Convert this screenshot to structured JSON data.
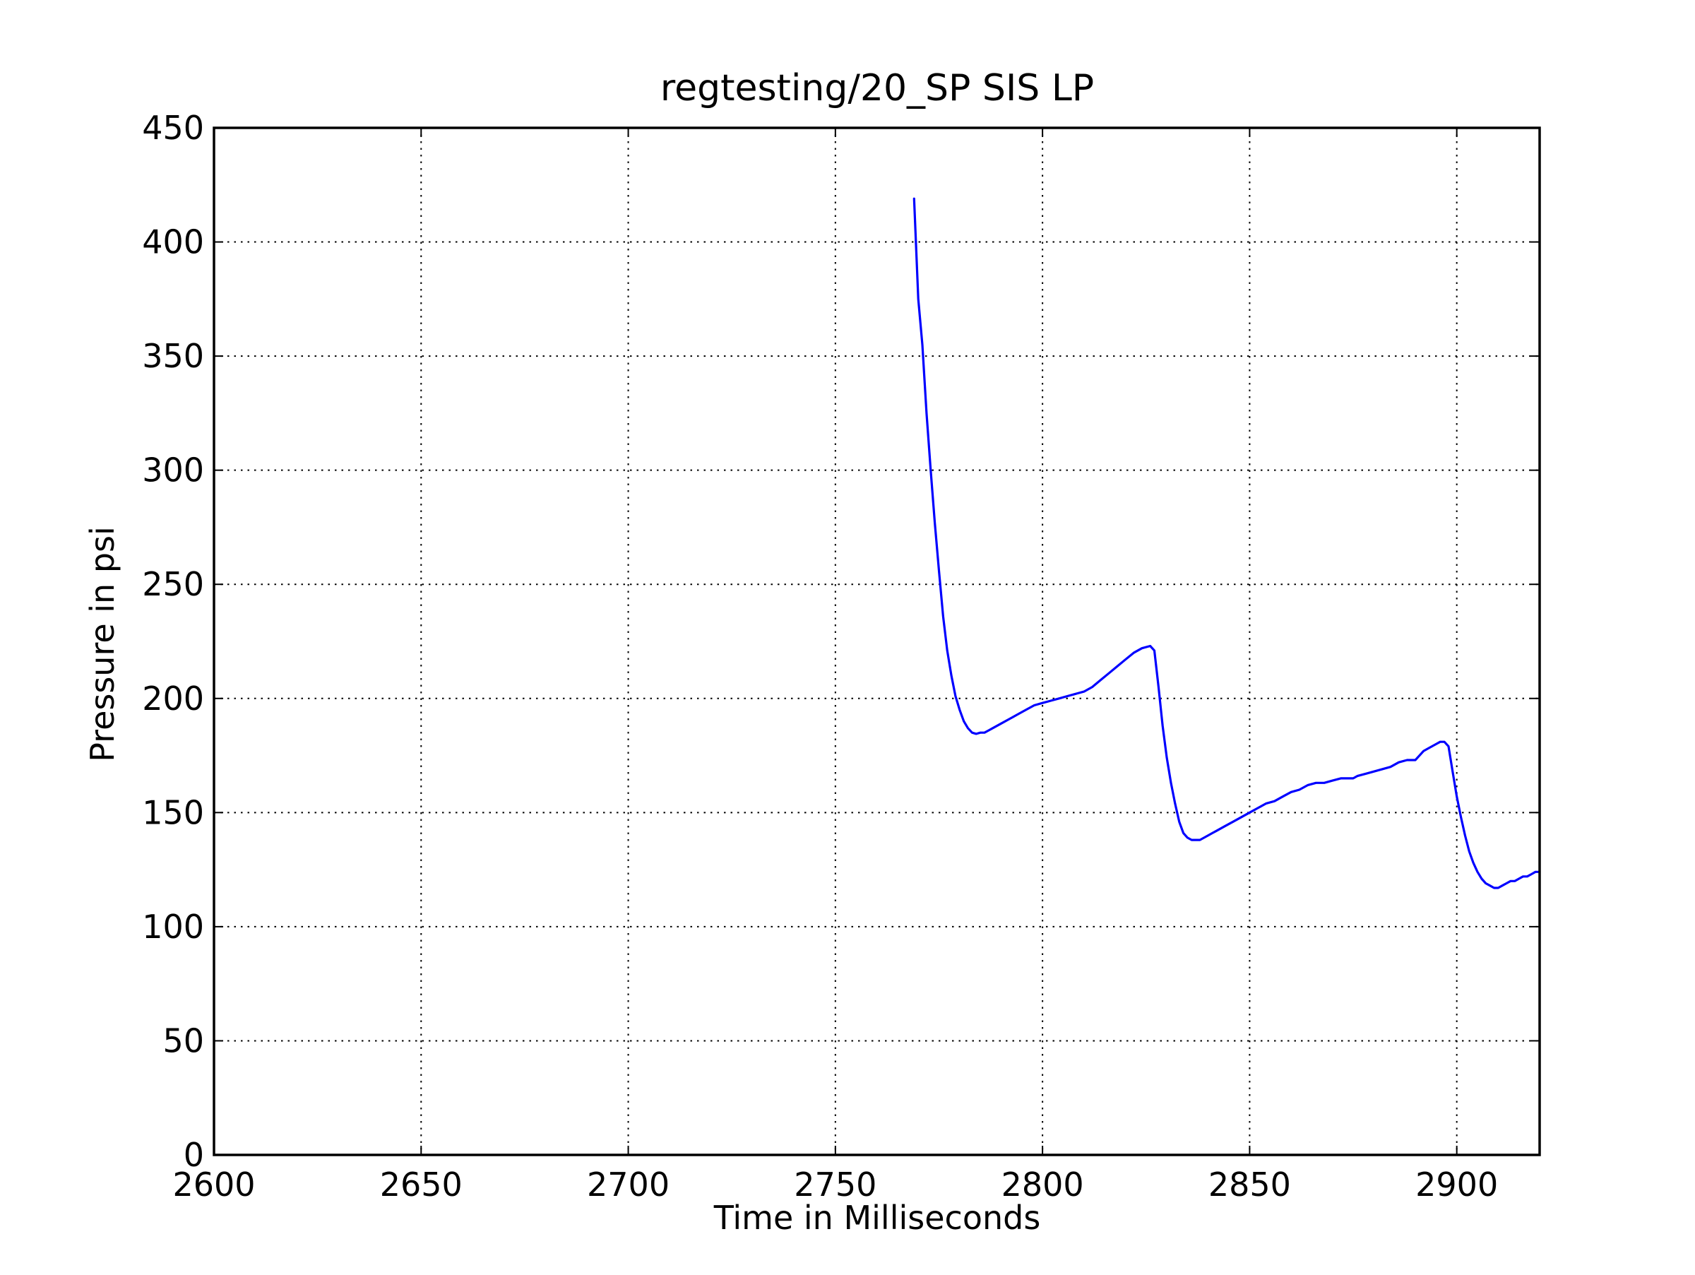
{
  "chart_data": {
    "type": "line",
    "title": "regtesting/20_SP SIS LP",
    "xlabel": "Time in Milliseconds",
    "ylabel": "Pressure in psi",
    "xlim": [
      2600,
      2920
    ],
    "ylim": [
      0,
      450
    ],
    "xticks": [
      2600,
      2650,
      2700,
      2750,
      2800,
      2850,
      2900
    ],
    "yticks": [
      0,
      50,
      100,
      150,
      200,
      250,
      300,
      350,
      400,
      450
    ],
    "xtick_labels": [
      "2600",
      "2650",
      "2700",
      "2750",
      "2800",
      "2850",
      "2900"
    ],
    "ytick_labels": [
      "0",
      "50",
      "100",
      "150",
      "200",
      "250",
      "300",
      "350",
      "400",
      "450"
    ],
    "grid": true,
    "grid_style": "dotted",
    "legend": "none",
    "series": [
      {
        "color": "#0000ff",
        "x": [
          2769,
          2770,
          2771,
          2772,
          2773,
          2774,
          2775,
          2776,
          2777,
          2778,
          2779,
          2780,
          2781,
          2782,
          2783,
          2784,
          2785,
          2786,
          2787,
          2788,
          2790,
          2792,
          2794,
          2796,
          2798,
          2800,
          2802,
          2804,
          2806,
          2808,
          2810,
          2812,
          2814,
          2816,
          2818,
          2820,
          2822,
          2824,
          2826,
          2827,
          2828,
          2829,
          2830,
          2831,
          2832,
          2833,
          2834,
          2835,
          2836,
          2837,
          2838,
          2839,
          2840,
          2841,
          2842,
          2844,
          2846,
          2848,
          2850,
          2852,
          2854,
          2856,
          2858,
          2860,
          2862,
          2864,
          2866,
          2868,
          2870,
          2872,
          2874,
          2875,
          2876,
          2878,
          2880,
          2882,
          2884,
          2886,
          2888,
          2890,
          2891,
          2892,
          2893,
          2894,
          2895,
          2896,
          2897,
          2898,
          2899,
          2900,
          2901,
          2902,
          2903,
          2904,
          2905,
          2906,
          2907,
          2908,
          2909,
          2910,
          2911,
          2912,
          2913,
          2914,
          2915,
          2916,
          2917,
          2918,
          2919,
          2920
        ],
        "y": [
          419,
          375,
          355,
          325,
          300,
          277,
          256,
          236,
          221,
          210,
          201,
          195,
          190,
          187,
          185,
          184.5,
          185,
          185,
          186,
          187,
          189,
          191,
          193,
          195,
          197,
          198,
          199,
          200,
          201,
          202,
          203,
          205,
          208,
          211,
          214,
          217,
          220,
          222,
          223,
          221,
          205,
          188,
          174,
          163,
          154,
          146,
          141,
          139,
          138,
          138,
          138,
          139,
          140,
          141,
          142,
          144,
          146,
          148,
          150,
          152,
          154,
          155,
          157,
          159,
          160,
          162,
          163,
          163,
          164,
          165,
          165,
          165,
          166,
          167,
          168,
          169,
          170,
          172,
          173,
          173,
          175,
          177,
          178,
          179,
          180,
          181,
          181,
          179,
          168,
          157,
          148,
          140,
          133,
          128,
          124,
          121,
          119,
          118,
          117,
          117,
          118,
          119,
          120,
          120,
          121,
          122,
          122,
          123,
          124,
          124
        ]
      }
    ]
  }
}
